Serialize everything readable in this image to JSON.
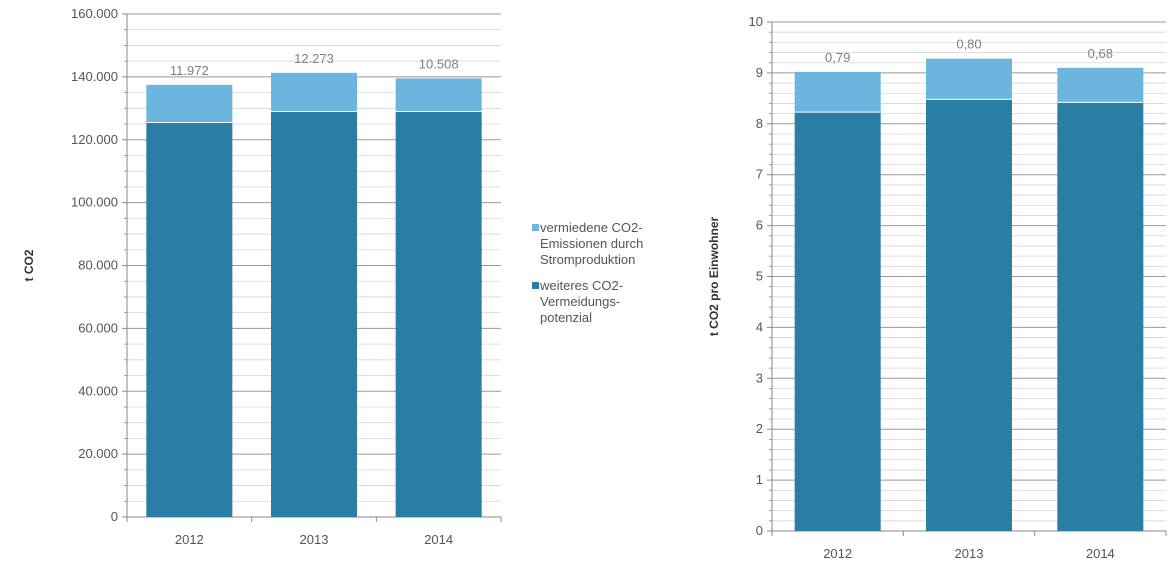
{
  "colors": {
    "top": "#6cb5de",
    "bottom": "#2a7ea6",
    "axis": "#888888",
    "grid": "#b0b0b0"
  },
  "legend": [
    {
      "label": "vermiedene CO2-Emissionen durch Stromproduktion",
      "lines": [
        "vermiedene CO2-",
        "Emissionen durch",
        "Stromproduktion"
      ],
      "color": "#6cb5de"
    },
    {
      "label": "weiteres CO2-Vermeidungspotenzial",
      "lines": [
        "weiteres CO2-",
        "Vermeidungs-",
        "potenzial"
      ],
      "color": "#2a7ea6"
    }
  ],
  "chart_data": [
    {
      "type": "bar",
      "stacked": true,
      "categories": [
        "2012",
        "2013",
        "2014"
      ],
      "ylabel": "t CO2",
      "ylim": [
        0,
        160000
      ],
      "yticks": [
        0,
        20000,
        40000,
        60000,
        80000,
        100000,
        120000,
        140000,
        160000
      ],
      "ytick_labels": [
        "0",
        "20.000",
        "40.000",
        "60.000",
        "80.000",
        "100.000",
        "120.000",
        "140.000",
        "160.000"
      ],
      "series": [
        {
          "name": "weiteres CO2-Vermeidungspotenzial",
          "values": [
            125500,
            129000,
            129000
          ]
        },
        {
          "name": "vermiedene CO2-Emissionen durch Stromproduktion",
          "values": [
            11972,
            12273,
            10508
          ],
          "labels": [
            "11.972",
            "12.273",
            "10.508"
          ]
        }
      ],
      "grid": true
    },
    {
      "type": "bar",
      "stacked": true,
      "categories": [
        "2012",
        "2013",
        "2014"
      ],
      "ylabel": "t CO2 pro Einwohner",
      "ylim": [
        0,
        10
      ],
      "yticks": [
        0,
        1,
        2,
        3,
        4,
        5,
        6,
        7,
        8,
        9,
        10
      ],
      "ytick_labels": [
        "0",
        "1",
        "2",
        "3",
        "4",
        "5",
        "6",
        "7",
        "8",
        "9",
        "10"
      ],
      "series": [
        {
          "name": "weiteres CO2-Vermeidungspotenzial",
          "values": [
            8.23,
            8.48,
            8.42
          ]
        },
        {
          "name": "vermiedene CO2-Emissionen durch Stromproduktion",
          "values": [
            0.79,
            0.8,
            0.68
          ],
          "labels": [
            "0,79",
            "0,80",
            "0,68"
          ]
        }
      ],
      "grid": true
    }
  ]
}
